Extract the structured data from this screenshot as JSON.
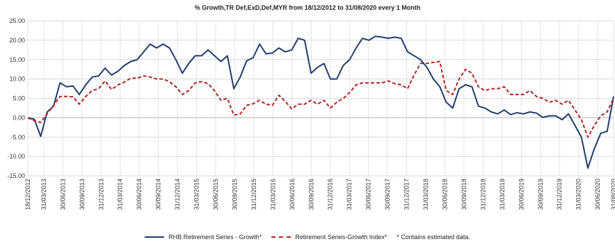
{
  "chart_data": {
    "type": "line",
    "title": "% Growth,TR Def,ExD,Def,MYR from 18/12/2012 to 31/08/2020 every 1 Month",
    "ylim": [
      -15,
      25
    ],
    "yticks": [
      "25.00",
      "20.00",
      "15.00",
      "10.00",
      "5.00",
      "0.00",
      "-5.00",
      "-10.00",
      "-15.00"
    ],
    "x_tick_labels": [
      "18/12/2012",
      "31/03/2013",
      "30/06/2013",
      "30/09/2013",
      "31/12/2013",
      "31/03/2014",
      "30/06/2014",
      "30/09/2014",
      "31/12/2014",
      "31/03/2015",
      "30/06/2015",
      "30/09/2015",
      "31/12/2015",
      "31/03/2016",
      "30/06/2016",
      "30/09/2016",
      "31/12/2016",
      "31/03/2017",
      "30/06/2017",
      "30/09/2017",
      "31/12/2017",
      "31/03/2018",
      "30/06/2018",
      "30/09/2018",
      "31/12/2018",
      "31/03/2019",
      "30/06/2019",
      "30/09/2019",
      "31/12/2019",
      "31/03/2020",
      "30/06/2020",
      "31/08/2020"
    ],
    "x_months": 92,
    "grid": true,
    "legend_position": "bottom",
    "series": [
      {
        "name": "RHB Retirement Series - Growth*",
        "color": "#1f3b6d",
        "style": "solid",
        "values": [
          0,
          -0.4,
          -4.8,
          1.5,
          3.0,
          9.0,
          8.0,
          8.2,
          6.0,
          8.5,
          10.5,
          10.8,
          12.8,
          11.0,
          12.0,
          13.5,
          14.5,
          15.0,
          17.0,
          19.0,
          18.0,
          19.0,
          18.0,
          15.0,
          11.5,
          14.0,
          16.0,
          16.0,
          17.5,
          16.0,
          14.5,
          16.0,
          7.5,
          10.5,
          14.7,
          15.5,
          19.0,
          16.5,
          16.7,
          18.0,
          17.0,
          17.5,
          20.5,
          20.0,
          11.5,
          13.0,
          14.0,
          10.0,
          10.0,
          13.5,
          15.0,
          18.0,
          20.5,
          20.0,
          21.0,
          20.8,
          20.5,
          20.8,
          20.5,
          17.0,
          16.0,
          15.0,
          13.0,
          10.0,
          8.0,
          4.0,
          2.5,
          7.5,
          8.5,
          8.0,
          3.0,
          2.5,
          1.5,
          1.0,
          2.0,
          0.8,
          1.3,
          1.0,
          1.5,
          1.2,
          0.1,
          0.5,
          0.5,
          -0.5,
          1.0,
          -2.0,
          -5.0,
          -13.0,
          -8.0,
          -4.0,
          -3.5,
          5.5
        ]
      },
      {
        "name": "Retirement Series-Growth Index*",
        "color": "#b22222",
        "style": "dashed",
        "values": [
          0,
          -0.8,
          -1.2,
          1.0,
          3.2,
          5.5,
          5.5,
          5.4,
          3.5,
          5.5,
          7.0,
          7.5,
          9.5,
          7.3,
          8.5,
          9.2,
          10.2,
          10.2,
          10.8,
          10.5,
          10.0,
          10.0,
          9.3,
          8.0,
          6.0,
          7.0,
          9.0,
          9.3,
          8.8,
          7.0,
          4.5,
          5.0,
          0.7,
          1.0,
          3.2,
          3.6,
          4.5,
          3.5,
          3.2,
          5.8,
          4.2,
          2.3,
          3.5,
          3.5,
          4.5,
          3.5,
          4.5,
          2.5,
          4.0,
          5.0,
          6.5,
          8.5,
          9.0,
          9.0,
          9.0,
          9.0,
          9.5,
          8.8,
          8.5,
          7.5,
          11.0,
          14.0,
          14.0,
          14.3,
          14.5,
          7.0,
          6.0,
          10.0,
          12.5,
          11.5,
          8.0,
          7.0,
          7.5,
          7.5,
          8.0,
          6.0,
          6.0,
          6.0,
          7.0,
          5.5,
          5.0,
          4.0,
          4.5,
          3.5,
          4.5,
          2.0,
          -0.5,
          -5.0,
          -2.0,
          0.5,
          1.5,
          5.0
        ]
      }
    ],
    "legend_entries": [
      "RHB Retirement Series - Growth*",
      "Retirement Series-Growth Index*",
      "*  Contains estimated data."
    ]
  }
}
